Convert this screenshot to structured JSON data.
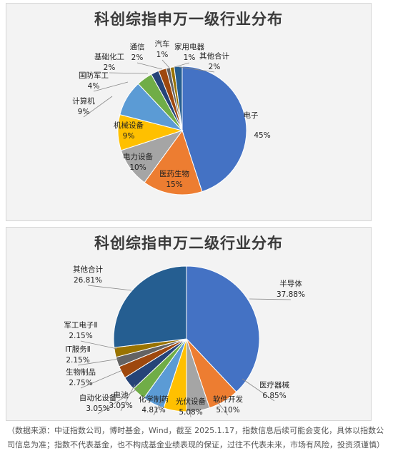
{
  "footnote": "（数据来源：中证指数公司，博时基金，Wind，截至 2025.1.17，指数信息后续可能会变化，具体以指数公司信息为准；指数不代表基金，也不构成基金业绩表现的保证，过往不代表未来，市场有风险，投资须谨慎）",
  "chart_data": [
    {
      "type": "pie",
      "title": "科创综指申万一级行业分布",
      "slices": [
        {
          "name": "电子",
          "value": 45,
          "label": "45%",
          "color": "#4472c4"
        },
        {
          "name": "医药生物",
          "value": 15,
          "label": "15%",
          "color": "#ed7d31"
        },
        {
          "name": "电力设备",
          "value": 10,
          "label": "10%",
          "color": "#a5a5a5"
        },
        {
          "name": "机械设备",
          "value": 9,
          "label": "9%",
          "color": "#ffc000"
        },
        {
          "name": "计算机",
          "value": 9,
          "label": "9%",
          "color": "#5b9bd5"
        },
        {
          "name": "国防军工",
          "value": 4,
          "label": "4%",
          "color": "#70ad47"
        },
        {
          "name": "基础化工",
          "value": 2,
          "label": "2%",
          "color": "#264478"
        },
        {
          "name": "通信",
          "value": 2,
          "label": "2%",
          "color": "#9e480e"
        },
        {
          "name": "汽车",
          "value": 1,
          "label": "1%",
          "color": "#636363"
        },
        {
          "name": "家用电器",
          "value": 1,
          "label": "1%",
          "color": "#997300"
        },
        {
          "name": "其他合计",
          "value": 2,
          "label": "2%",
          "color": "#255e91"
        }
      ]
    },
    {
      "type": "pie",
      "title": "科创综指申万二级行业分布",
      "slices": [
        {
          "name": "半导体",
          "value": 37.88,
          "label": "37.88%",
          "color": "#4472c4"
        },
        {
          "name": "医疗器械",
          "value": 6.85,
          "label": "6.85%",
          "color": "#ed7d31"
        },
        {
          "name": "软件开发",
          "value": 5.1,
          "label": "5.10%",
          "color": "#a5a5a5"
        },
        {
          "name": "光伏设备",
          "value": 5.08,
          "label": "5.08%",
          "color": "#ffc000"
        },
        {
          "name": "化学制药",
          "value": 4.81,
          "label": "4.81%",
          "color": "#5b9bd5"
        },
        {
          "name": "自动化设备",
          "value": 3.05,
          "label": "3.05%",
          "color": "#70ad47"
        },
        {
          "name": "电池",
          "value": 3.05,
          "label": "3.05%",
          "color": "#264478"
        },
        {
          "name": "生物制品",
          "value": 2.75,
          "label": "2.75%",
          "color": "#9e480e"
        },
        {
          "name": "IT服务Ⅱ",
          "value": 2.15,
          "label": "2.15%",
          "color": "#636363"
        },
        {
          "name": "军工电子Ⅱ",
          "value": 2.15,
          "label": "2.15%",
          "color": "#997300"
        },
        {
          "name": "其他合计",
          "value": 26.81,
          "label": "26.81%",
          "color": "#255e91"
        }
      ]
    }
  ]
}
